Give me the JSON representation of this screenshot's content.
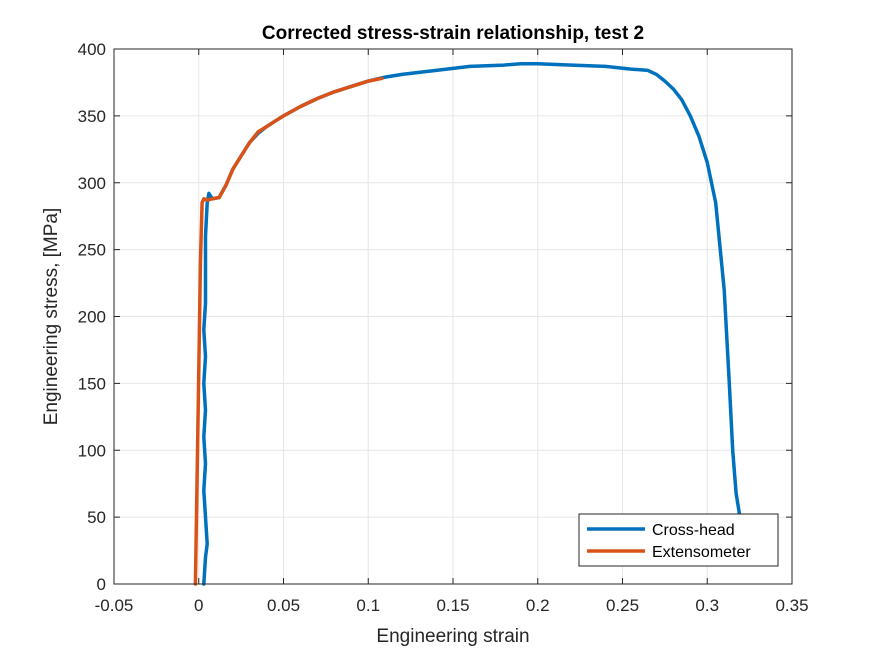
{
  "chart_data": {
    "type": "line",
    "title": "Corrected stress-strain relationship, test 2",
    "xlabel": "Engineering strain",
    "ylabel": "Engineering stress, [MPa]",
    "xlim": [
      -0.05,
      0.35
    ],
    "ylim": [
      0,
      400
    ],
    "xticks": [
      -0.05,
      0,
      0.05,
      0.1,
      0.15,
      0.2,
      0.25,
      0.3,
      0.35
    ],
    "xtick_labels": [
      "-0.05",
      "0",
      "0.05",
      "0.1",
      "0.15",
      "0.2",
      "0.25",
      "0.3",
      "0.35"
    ],
    "yticks": [
      0,
      50,
      100,
      150,
      200,
      250,
      300,
      350,
      400
    ],
    "ytick_labels": [
      "0",
      "50",
      "100",
      "150",
      "200",
      "250",
      "300",
      "350",
      "400"
    ],
    "grid": true,
    "legend_position": "bottom-right",
    "series": [
      {
        "name": "Cross-head",
        "color": "#0072BD",
        "x": [
          0.003,
          0.004,
          0.005,
          0.004,
          0.003,
          0.004,
          0.003,
          0.004,
          0.003,
          0.004,
          0.003,
          0.004,
          0.004,
          0.004,
          0.005,
          0.006,
          0.008,
          0.012,
          0.016,
          0.02,
          0.025,
          0.03,
          0.035,
          0.04,
          0.045,
          0.05,
          0.06,
          0.07,
          0.08,
          0.09,
          0.1,
          0.11,
          0.12,
          0.14,
          0.16,
          0.18,
          0.19,
          0.2,
          0.22,
          0.24,
          0.255,
          0.265,
          0.27,
          0.275,
          0.28,
          0.285,
          0.29,
          0.295,
          0.3,
          0.305,
          0.31,
          0.313,
          0.315,
          0.317,
          0.318,
          0.32
        ],
        "y": [
          0,
          20,
          30,
          50,
          70,
          90,
          110,
          130,
          150,
          170,
          190,
          210,
          230,
          260,
          285,
          292,
          288,
          289,
          298,
          310,
          320,
          330,
          337,
          342,
          346,
          350,
          357,
          363,
          368,
          372,
          376,
          379,
          381,
          384,
          387,
          388,
          389,
          389,
          388,
          387,
          385,
          384,
          381,
          376,
          370,
          362,
          350,
          335,
          315,
          285,
          220,
          150,
          100,
          68,
          60,
          45
        ]
      },
      {
        "name": "Extensometer",
        "color": "#D95319",
        "x": [
          -0.002,
          -0.001,
          0.0,
          0.001,
          0.002,
          0.003,
          0.005,
          0.008,
          0.012,
          0.016,
          0.02,
          0.025,
          0.03,
          0.035,
          0.04,
          0.045,
          0.05,
          0.06,
          0.07,
          0.08,
          0.09,
          0.1,
          0.108
        ],
        "y": [
          0,
          80,
          160,
          240,
          285,
          288,
          287,
          288,
          289,
          298,
          310,
          320,
          330,
          338,
          342,
          346,
          350,
          357,
          363,
          368,
          372,
          376,
          378
        ]
      }
    ]
  }
}
